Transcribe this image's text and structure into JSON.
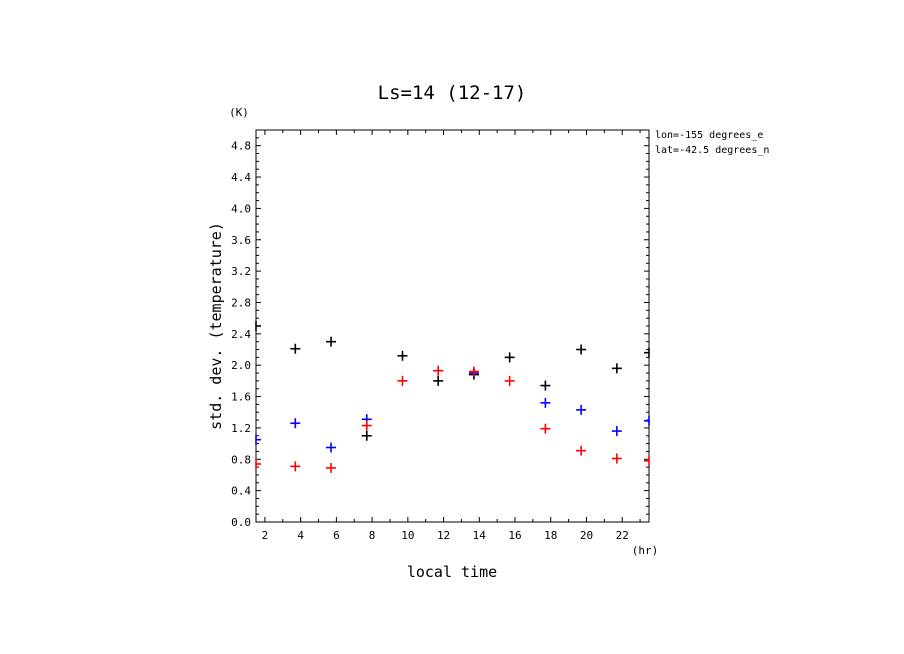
{
  "chart_data": {
    "type": "scatter",
    "title": "Ls=14 (12-17)",
    "xlabel": "local time",
    "ylabel": "std. dev. (temperature)",
    "x_unit": "(hr)",
    "y_unit": "(K)",
    "xlim": [
      1.5,
      23.5
    ],
    "ylim": [
      0.0,
      5.0
    ],
    "x_ticks": [
      2,
      4,
      6,
      8,
      10,
      12,
      14,
      16,
      18,
      20,
      22
    ],
    "x_tick_labels": [
      "2",
      "4",
      "6",
      "8",
      "10",
      "12",
      "14",
      "16",
      "18",
      "20",
      "22"
    ],
    "y_ticks": [
      0.0,
      0.4,
      0.8,
      1.2,
      1.6,
      2.0,
      2.4,
      2.8,
      3.2,
      3.6,
      4.0,
      4.4,
      4.8
    ],
    "y_tick_labels": [
      "0.0",
      "0.4",
      "0.8",
      "1.2",
      "1.6",
      "2.0",
      "2.4",
      "2.8",
      "3.2",
      "3.6",
      "4.0",
      "4.4",
      "4.8"
    ],
    "annotations": [
      "lon=-155 degrees_e",
      "lat=-42.5 degrees_n"
    ],
    "series": [
      {
        "name": "black",
        "color": "#000000",
        "points": [
          [
            1.5,
            2.5
          ],
          [
            3.7,
            2.21
          ],
          [
            5.7,
            2.3
          ],
          [
            7.7,
            1.1
          ],
          [
            9.7,
            2.12
          ],
          [
            11.7,
            1.8
          ],
          [
            13.7,
            1.88
          ],
          [
            15.7,
            2.1
          ],
          [
            17.7,
            1.74
          ],
          [
            19.7,
            2.2
          ],
          [
            21.7,
            1.96
          ],
          [
            23.5,
            2.16
          ]
        ]
      },
      {
        "name": "blue",
        "color": "#0000ff",
        "points": [
          [
            1.5,
            1.05
          ],
          [
            3.7,
            1.26
          ],
          [
            5.7,
            0.95
          ],
          [
            7.7,
            1.31
          ],
          [
            13.7,
            1.9
          ],
          [
            17.7,
            1.52
          ],
          [
            19.7,
            1.43
          ],
          [
            21.7,
            1.16
          ],
          [
            23.5,
            1.29
          ]
        ]
      },
      {
        "name": "red",
        "color": "#ff0000",
        "points": [
          [
            1.5,
            0.74
          ],
          [
            3.7,
            0.71
          ],
          [
            5.7,
            0.69
          ],
          [
            7.7,
            1.23
          ],
          [
            9.7,
            1.8
          ],
          [
            11.7,
            1.93
          ],
          [
            13.7,
            1.92
          ],
          [
            15.7,
            1.8
          ],
          [
            17.7,
            1.19
          ],
          [
            19.7,
            0.91
          ],
          [
            21.7,
            0.81
          ],
          [
            23.5,
            0.78
          ]
        ]
      }
    ]
  }
}
